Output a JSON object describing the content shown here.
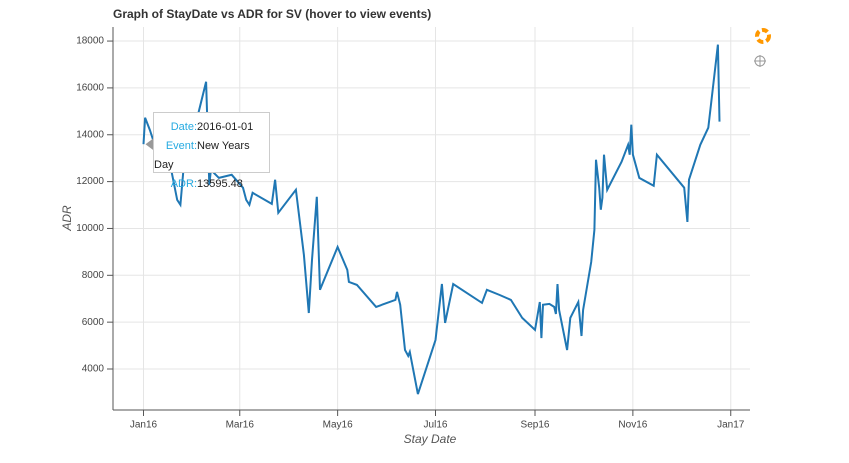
{
  "chart_data": {
    "type": "line",
    "title": "Graph of StayDate vs ADR for SV (hover to view events)",
    "x_label": "Stay Date",
    "y_label": "ADR",
    "grid": true,
    "xlim": [
      "2015-12-13",
      "2017-01-13"
    ],
    "xticks": [
      {
        "value": "2016-01-01",
        "label": "Jan16"
      },
      {
        "value": "2016-03-01",
        "label": "Mar16"
      },
      {
        "value": "2016-05-01",
        "label": "May16"
      },
      {
        "value": "2016-07-01",
        "label": "Jul16"
      },
      {
        "value": "2016-09-01",
        "label": "Sep16"
      },
      {
        "value": "2016-11-01",
        "label": "Nov16"
      },
      {
        "value": "2017-01-01",
        "label": "Jan17"
      }
    ],
    "ylim": [
      2250,
      18600
    ],
    "yticks": [
      4000,
      6000,
      8000,
      10000,
      12000,
      14000,
      16000,
      18000
    ],
    "color": "#1f77b4",
    "x": [
      "2016-01-01",
      "2016-01-02",
      "2016-01-05",
      "2016-01-08",
      "2016-01-15",
      "2016-01-18",
      "2016-01-22",
      "2016-01-24",
      "2016-01-26",
      "2016-01-30",
      "2016-02-02",
      "2016-02-09",
      "2016-02-11",
      "2016-02-12",
      "2016-02-17",
      "2016-02-25",
      "2016-03-03",
      "2016-03-05",
      "2016-03-07",
      "2016-03-09",
      "2016-03-21",
      "2016-03-23",
      "2016-03-25",
      "2016-04-05",
      "2016-04-10",
      "2016-04-13",
      "2016-04-15",
      "2016-04-18",
      "2016-04-20",
      "2016-05-01",
      "2016-05-07",
      "2016-05-08",
      "2016-05-13",
      "2016-05-25",
      "2016-06-06",
      "2016-06-07",
      "2016-06-09",
      "2016-06-12",
      "2016-06-14",
      "2016-06-15",
      "2016-06-20",
      "2016-07-01",
      "2016-07-05",
      "2016-07-07",
      "2016-07-12",
      "2016-07-30",
      "2016-08-02",
      "2016-08-10",
      "2016-08-17",
      "2016-08-24",
      "2016-09-01",
      "2016-09-04",
      "2016-09-05",
      "2016-09-06",
      "2016-09-10",
      "2016-09-13",
      "2016-09-14",
      "2016-09-15",
      "2016-09-16",
      "2016-09-21",
      "2016-09-23",
      "2016-09-28",
      "2016-09-30",
      "2016-10-01",
      "2016-10-06",
      "2016-10-08",
      "2016-10-09",
      "2016-10-11",
      "2016-10-12",
      "2016-10-13",
      "2016-10-14",
      "2016-10-16",
      "2016-10-25",
      "2016-10-29",
      "2016-10-30",
      "2016-10-31",
      "2016-11-01",
      "2016-11-05",
      "2016-11-14",
      "2016-11-16",
      "2016-12-03",
      "2016-12-05",
      "2016-12-06",
      "2016-12-13",
      "2016-12-18",
      "2016-12-24",
      "2016-12-25"
    ],
    "values": [
      13595.48,
      14730,
      14200,
      13570,
      13140,
      12590,
      11220,
      11010,
      12590,
      12720,
      14300,
      16260,
      11860,
      12500,
      12160,
      12290,
      11740,
      11220,
      11010,
      11520,
      11050,
      12080,
      10670,
      11650,
      8870,
      6390,
      8660,
      11350,
      7380,
      9210,
      8230,
      7720,
      7590,
      6650,
      6950,
      7290,
      6740,
      4810,
      4560,
      4730,
      2930,
      5240,
      7630,
      5970,
      7630,
      6820,
      7380,
      7160,
      6950,
      6180,
      5670,
      6860,
      5320,
      6740,
      6780,
      6650,
      6350,
      7630,
      6520,
      4810,
      6180,
      6860,
      5410,
      6520,
      8570,
      9940,
      12930,
      11740,
      10800,
      11310,
      13150,
      11650,
      12850,
      13570,
      13150,
      14430,
      13150,
      12160,
      11820,
      13150,
      11740,
      10280,
      12080,
      13570,
      14300,
      17850,
      14560
    ],
    "tooltip": {
      "date_label": "Date:",
      "event_label": "Event:",
      "event": "New Years Day",
      "adr_label": "ADR:"
    }
  }
}
